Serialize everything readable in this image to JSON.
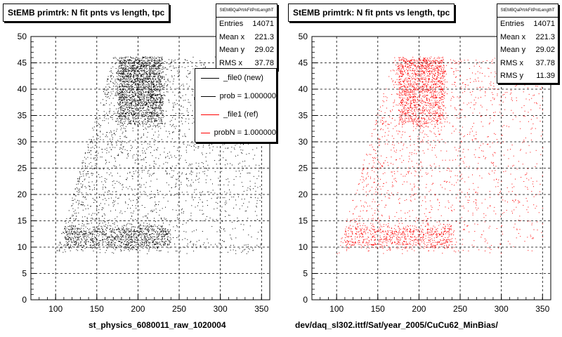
{
  "footer_text": "",
  "chart_data": [
    {
      "type": "scatter",
      "title": "StEMB primtrk: N fit pnts vs length, tpc",
      "xlabel": "st_physics_6080011_raw_1020004",
      "ylabel": "",
      "xlim": [
        70,
        360
      ],
      "ylim": [
        0,
        50
      ],
      "x_ticks": [
        100,
        150,
        200,
        250,
        300,
        350
      ],
      "y_ticks": [
        0,
        5,
        10,
        15,
        20,
        25,
        30,
        35,
        40,
        45,
        50
      ],
      "grid": true,
      "marker_color": "#000000",
      "stats": {
        "name": "StEMBQaPrtrkFitPntLengthT",
        "rows": [
          {
            "label": "Entries",
            "value": "14071"
          },
          {
            "label": "Mean x",
            "value": "221.3"
          },
          {
            "label": "Mean y",
            "value": "29.02"
          },
          {
            "label": "RMS x",
            "value": "37.78"
          }
        ]
      },
      "legend": {
        "placement": "top-right",
        "entries": [
          {
            "label": "_file0 (new)",
            "color": "#000000"
          },
          {
            "label": "prob = 1.000000",
            "color": "#000000"
          },
          {
            "label": "_file1 (ref)",
            "color": "#ff0000"
          },
          {
            "label": "probN = 1.000000",
            "color": "#ff0000"
          }
        ]
      },
      "distribution": {
        "x_range": [
          95,
          350
        ],
        "y_range": [
          9,
          46
        ],
        "core_x": [
          175,
          230
        ],
        "core_y": [
          33,
          46
        ],
        "band_y": [
          10,
          14
        ]
      }
    },
    {
      "type": "scatter",
      "title": "StEMB primtrk: N fit pnts vs length, tpc",
      "xlabel": "dev/daq_sl302.ittf/Sat/year_2005/CuCu62_MinBias/",
      "ylabel": "",
      "xlim": [
        70,
        360
      ],
      "ylim": [
        0,
        50
      ],
      "x_ticks": [
        100,
        150,
        200,
        250,
        300,
        350
      ],
      "y_ticks": [
        0,
        5,
        10,
        15,
        20,
        25,
        30,
        35,
        40,
        45,
        50
      ],
      "grid": true,
      "marker_color": "#ff0000",
      "stats": {
        "name": "StEMBQaPrtrkFitPntLengthT",
        "rows": [
          {
            "label": "Entries",
            "value": "14071"
          },
          {
            "label": "Mean x",
            "value": "221.3"
          },
          {
            "label": "Mean y",
            "value": "29.02"
          },
          {
            "label": "RMS x",
            "value": "37.78"
          },
          {
            "label": "RMS y",
            "value": "11.39"
          }
        ]
      },
      "distribution": {
        "x_range": [
          95,
          350
        ],
        "y_range": [
          9,
          46
        ],
        "core_x": [
          175,
          230
        ],
        "core_y": [
          33,
          46
        ],
        "band_y": [
          10,
          14
        ]
      }
    }
  ]
}
